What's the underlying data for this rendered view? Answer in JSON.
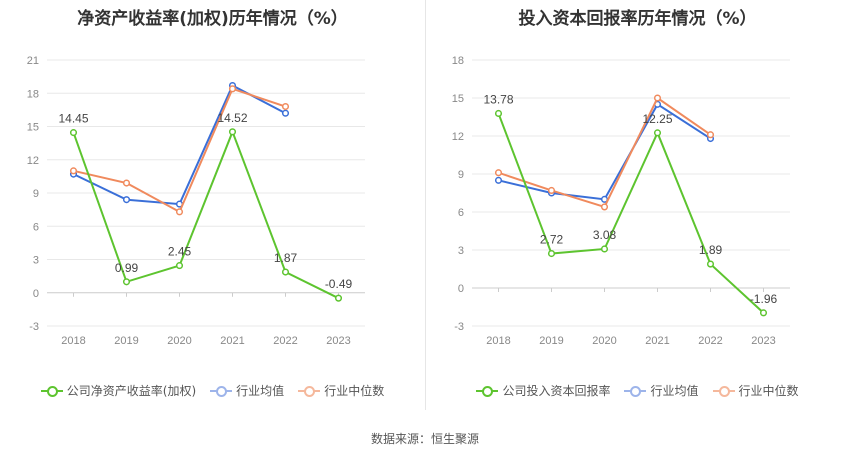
{
  "footer": "数据来源：恒生聚源",
  "colors": {
    "company": "#5dc42f",
    "industry_avg": "#3a6fd8",
    "industry_median": "#f08a5d"
  },
  "chart_data": [
    {
      "type": "line",
      "title": "净资产收益率(加权)历年情况（%）",
      "categories": [
        "2018",
        "2019",
        "2020",
        "2021",
        "2022",
        "2023"
      ],
      "yticks": [
        "21",
        "18",
        "15",
        "12",
        "9",
        "6",
        "3",
        "0",
        "-3"
      ],
      "ylim": [
        -3,
        21
      ],
      "grid": true,
      "legend_position": "bottom",
      "series": [
        {
          "name": "公司净资产收益率(加权)",
          "color": "#5dc42f",
          "values": [
            14.45,
            0.99,
            2.45,
            14.52,
            1.87,
            -0.49
          ],
          "labels": [
            "14.45",
            "0.99",
            "2.45",
            "14.52",
            "1.87",
            "-0.49"
          ]
        },
        {
          "name": "行业均值",
          "color": "#3a6fd8",
          "values": [
            10.7,
            8.4,
            8.0,
            18.7,
            16.2,
            null
          ]
        },
        {
          "name": "行业中位数",
          "color": "#f08a5d",
          "values": [
            11.0,
            9.9,
            7.3,
            18.4,
            16.8,
            null
          ]
        }
      ]
    },
    {
      "type": "line",
      "title": "投入资本回报率历年情况（%）",
      "categories": [
        "2018",
        "2019",
        "2020",
        "2021",
        "2022",
        "2023"
      ],
      "yticks": [
        "18",
        "15",
        "12",
        "9",
        "6",
        "3",
        "0",
        "-3"
      ],
      "ylim": [
        -3,
        18
      ],
      "grid": true,
      "legend_position": "bottom",
      "series": [
        {
          "name": "公司投入资本回报率",
          "color": "#5dc42f",
          "values": [
            13.78,
            2.72,
            3.08,
            12.25,
            1.89,
            -1.96
          ],
          "labels": [
            "13.78",
            "2.72",
            "3.08",
            "12.25",
            "1.89",
            "-1.96"
          ]
        },
        {
          "name": "行业均值",
          "color": "#3a6fd8",
          "values": [
            8.5,
            7.5,
            7.0,
            14.5,
            11.8,
            null
          ]
        },
        {
          "name": "行业中位数",
          "color": "#f08a5d",
          "values": [
            9.1,
            7.7,
            6.4,
            15.0,
            12.1,
            null
          ]
        }
      ]
    }
  ]
}
